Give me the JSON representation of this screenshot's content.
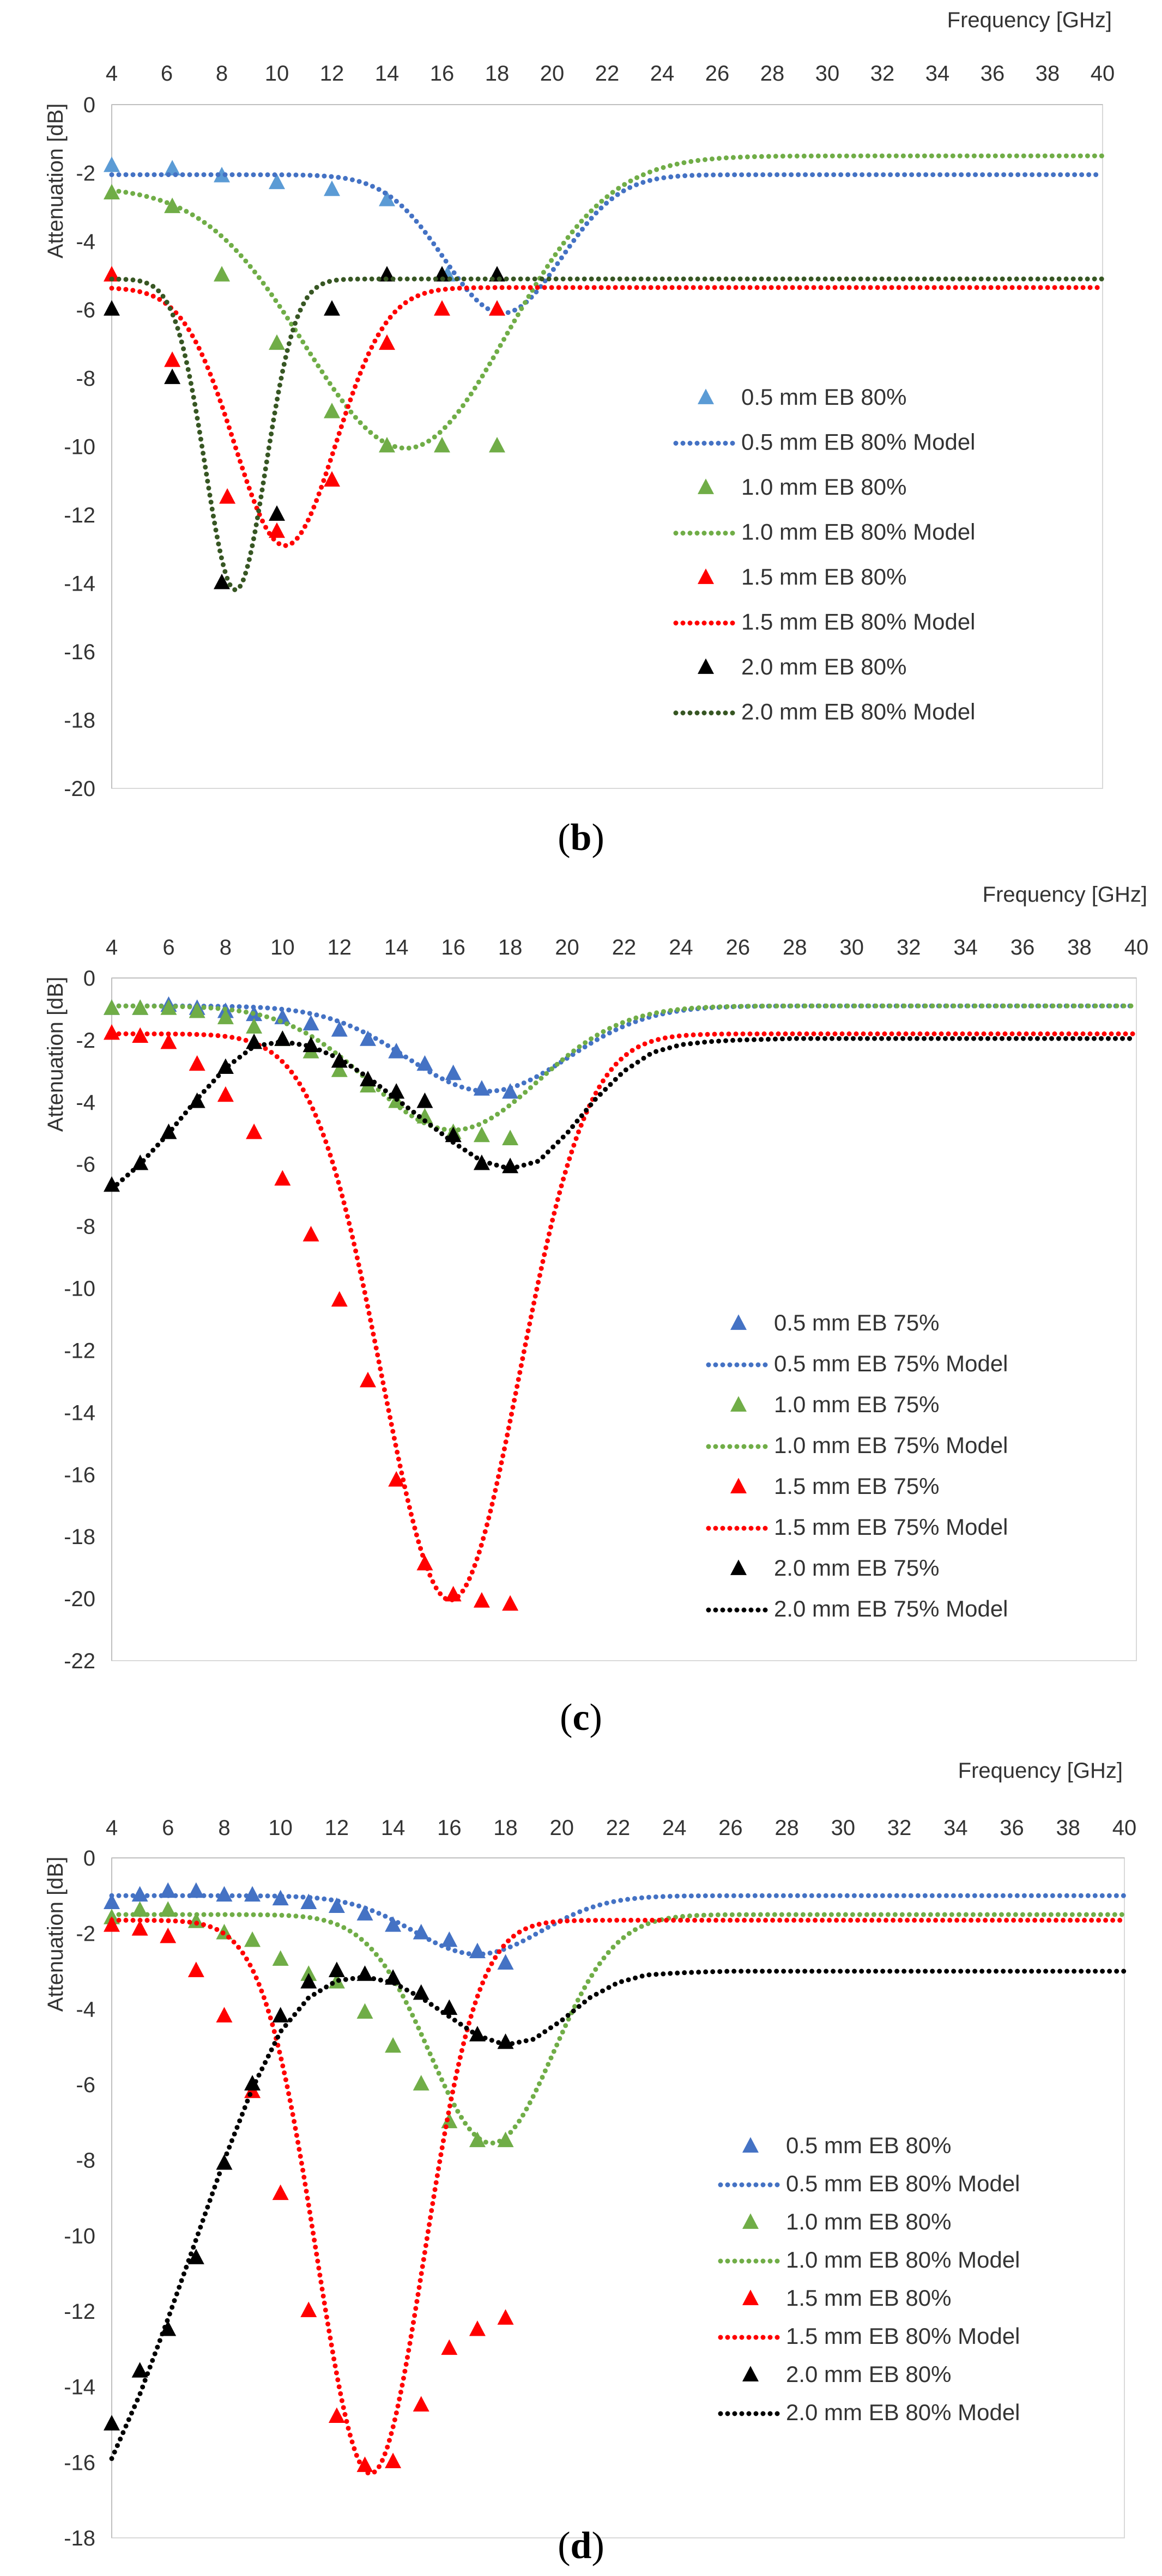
{
  "chart_data": [
    {
      "type": "scatter",
      "caption_letter": "b",
      "xlabel": "Frequency [GHz]",
      "ylabel": "Attenuation [dB]",
      "xlim": [
        4,
        40
      ],
      "ylim": [
        -20,
        0
      ],
      "xticks": [
        4,
        6,
        8,
        10,
        12,
        14,
        16,
        18,
        20,
        22,
        24,
        26,
        28,
        30,
        32,
        34,
        36,
        38,
        40
      ],
      "yticks": [
        0,
        -2,
        -4,
        -6,
        -8,
        -10,
        -12,
        -14,
        -16,
        -18,
        -20
      ],
      "xaxis_position": "top",
      "legend_position": "center-right",
      "series": [
        {
          "name": "0.5 mm EB 80%",
          "kind": "points",
          "color": "#5b9bd5",
          "x": [
            4,
            6.2,
            8,
            10,
            12,
            14,
            16.2,
            18
          ],
          "y": [
            -1.8,
            -1.9,
            -2.1,
            -2.3,
            -2.5,
            -2.8,
            -5.0,
            -6.0
          ]
        },
        {
          "name": "0.5 mm EB 80% Model",
          "kind": "model",
          "color": "#4472c4",
          "base": -2.05,
          "min": -6.1,
          "center": 18.2,
          "width": 3.0,
          "xmax": 40
        },
        {
          "name": "1.0 mm EB 80%",
          "kind": "points",
          "color": "#70ad47",
          "x": [
            4,
            6.2,
            8,
            10,
            12,
            14,
            16,
            18
          ],
          "y": [
            -2.6,
            -3.0,
            -5.0,
            -7.0,
            -9.0,
            -10.0,
            -10.0,
            -10.0
          ]
        },
        {
          "name": "1.0 mm EB 80% Model",
          "kind": "model",
          "color": "#70ad47",
          "base": -2.4,
          "min": -10.05,
          "center": 14.7,
          "width": 5.2,
          "base_right": -1.5,
          "xmax": 40
        },
        {
          "name": "1.5 mm EB 80%",
          "kind": "points",
          "color": "#ff0000",
          "x": [
            4,
            6.2,
            8.2,
            10,
            12,
            14,
            16,
            18
          ],
          "y": [
            -5.0,
            -7.5,
            -11.5,
            -12.5,
            -11.0,
            -7.0,
            -6.0,
            -6.0
          ]
        },
        {
          "name": "1.5 mm EB 80% Model",
          "kind": "model",
          "color": "#ff0000",
          "base": -5.35,
          "min": -12.9,
          "center": 10.3,
          "width": 2.6,
          "xmax": 40
        },
        {
          "name": "2.0 mm EB 80%",
          "kind": "points",
          "color": "#000000",
          "x": [
            4,
            6.2,
            8,
            10,
            12,
            14,
            16,
            18
          ],
          "y": [
            -6.0,
            -8.0,
            -14.0,
            -12.0,
            -6.0,
            -5.0,
            -5.0,
            -5.0
          ]
        },
        {
          "name": "2.0 mm EB 80% Model",
          "kind": "model",
          "color": "#375623",
          "base": -5.1,
          "min": -14.2,
          "center": 8.5,
          "width": 1.55,
          "xmax": 40
        }
      ]
    },
    {
      "type": "scatter",
      "caption_letter": "c",
      "xlabel": "Frequency [GHz]",
      "ylabel": "Attenuation [dB]",
      "xlim": [
        4,
        40
      ],
      "ylim": [
        -22,
        0
      ],
      "xticks": [
        4,
        6,
        8,
        10,
        12,
        14,
        16,
        18,
        20,
        22,
        24,
        26,
        28,
        30,
        32,
        34,
        36,
        38,
        40
      ],
      "yticks": [
        0,
        -2,
        -4,
        -6,
        -8,
        -10,
        -12,
        -14,
        -16,
        -18,
        -20,
        -22
      ],
      "xaxis_position": "top",
      "legend_position": "center-right",
      "series": [
        {
          "name": "0.5 mm EB 75%",
          "kind": "points",
          "color": "#4472c4",
          "x": [
            4,
            5,
            6,
            7,
            8,
            9,
            10,
            11,
            12,
            13,
            14,
            15,
            16,
            17,
            18
          ],
          "y": [
            -1.0,
            -1.0,
            -0.9,
            -1.0,
            -1.1,
            -1.2,
            -1.3,
            -1.5,
            -1.7,
            -2.0,
            -2.4,
            -2.8,
            -3.1,
            -3.6,
            -3.7
          ]
        },
        {
          "name": "0.5 mm EB 75% Model",
          "kind": "model",
          "color": "#4472c4",
          "base": -0.9,
          "min": -3.65,
          "center": 17.2,
          "width": 4.0,
          "xmax": 40
        },
        {
          "name": "1.0 mm EB 75%",
          "kind": "points",
          "color": "#70ad47",
          "x": [
            4,
            5,
            6,
            7,
            8,
            9,
            10,
            11,
            12,
            13,
            14,
            15,
            16,
            17,
            18
          ],
          "y": [
            -1.0,
            -1.0,
            -1.0,
            -1.1,
            -1.3,
            -1.6,
            -2.0,
            -2.4,
            -3.0,
            -3.5,
            -4.0,
            -4.5,
            -5.0,
            -5.1,
            -5.2
          ]
        },
        {
          "name": "1.0 mm EB 75% Model",
          "kind": "model",
          "color": "#70ad47",
          "base": -0.9,
          "min": -4.9,
          "center": 16.0,
          "width": 4.2,
          "xmax": 40
        },
        {
          "name": "1.5 mm EB 75%",
          "kind": "points",
          "color": "#ff0000",
          "x": [
            4,
            5,
            6,
            7,
            8,
            9,
            10,
            11,
            12,
            13,
            14,
            15,
            16,
            17,
            18
          ],
          "y": [
            -1.8,
            -1.9,
            -2.1,
            -2.8,
            -3.8,
            -5.0,
            -6.5,
            -8.3,
            -10.4,
            -13.0,
            -16.2,
            -18.9,
            -19.9,
            -20.1,
            -20.2
          ]
        },
        {
          "name": "1.5 mm EB 75% Model",
          "kind": "model",
          "color": "#ff0000",
          "base": -1.8,
          "min": -20.05,
          "center": 15.9,
          "width": 3.4,
          "xmax": 40
        },
        {
          "name": "2.0 mm EB 75%",
          "kind": "points",
          "color": "#000000",
          "x": [
            4,
            5,
            6,
            7,
            8,
            9,
            10,
            11,
            12,
            13,
            14,
            15,
            16,
            17,
            18
          ],
          "y": [
            -6.7,
            -6.0,
            -5.0,
            -4.0,
            -2.9,
            -2.1,
            -2.0,
            -2.2,
            -2.7,
            -3.3,
            -3.7,
            -4.0,
            -5.1,
            -6.0,
            -6.1
          ]
        },
        {
          "name": "2.0 mm EB 75% Model",
          "kind": "curve",
          "color": "#000000",
          "x": [
            4,
            5,
            6,
            7,
            8,
            9,
            10,
            11,
            12,
            13,
            14,
            15,
            16,
            17,
            18,
            19,
            20,
            21,
            22,
            23,
            24,
            25,
            26,
            28,
            30,
            40
          ],
          "y": [
            -6.8,
            -6.0,
            -5.0,
            -3.9,
            -2.9,
            -2.2,
            -2.05,
            -2.2,
            -2.6,
            -3.2,
            -3.9,
            -4.6,
            -5.3,
            -5.9,
            -6.15,
            -5.9,
            -5.0,
            -3.9,
            -3.0,
            -2.4,
            -2.15,
            -2.05,
            -2.0,
            -1.95,
            -1.95,
            -1.95
          ]
        }
      ]
    },
    {
      "type": "scatter",
      "caption_letter": "d",
      "xlabel": "Frequency [GHz]",
      "ylabel": "Attenuation [dB]",
      "xlim": [
        4,
        40
      ],
      "ylim": [
        -18,
        0
      ],
      "xticks": [
        4,
        6,
        8,
        10,
        12,
        14,
        16,
        18,
        20,
        22,
        24,
        26,
        28,
        30,
        32,
        34,
        36,
        38,
        40
      ],
      "yticks": [
        0,
        -2,
        -4,
        -6,
        -8,
        -10,
        -12,
        -14,
        -16,
        -18
      ],
      "xaxis_position": "top",
      "legend_position": "center-right",
      "series": [
        {
          "name": "0.5 mm EB 80%",
          "kind": "points",
          "color": "#4472c4",
          "x": [
            4,
            5,
            6,
            7,
            8,
            9,
            10,
            11,
            12,
            13,
            14,
            15,
            16,
            17,
            18
          ],
          "y": [
            -1.2,
            -1.0,
            -0.9,
            -0.9,
            -1.0,
            -1.0,
            -1.1,
            -1.2,
            -1.3,
            -1.5,
            -1.8,
            -2.0,
            -2.2,
            -2.5,
            -2.8
          ]
        },
        {
          "name": "0.5 mm EB 80% Model",
          "kind": "model",
          "color": "#4472c4",
          "base": -1.0,
          "min": -2.55,
          "center": 17.0,
          "width": 3.2,
          "xmax": 40
        },
        {
          "name": "1.0 mm EB 80%",
          "kind": "points",
          "color": "#70ad47",
          "x": [
            4,
            5,
            6,
            7,
            8,
            9,
            10,
            11,
            12,
            13,
            14,
            15,
            16,
            17,
            18
          ],
          "y": [
            -1.6,
            -1.4,
            -1.4,
            -1.7,
            -2.0,
            -2.2,
            -2.7,
            -3.1,
            -3.3,
            -4.1,
            -5.0,
            -6.0,
            -7.0,
            -7.5,
            -7.5
          ]
        },
        {
          "name": "1.0 mm EB 80% Model",
          "kind": "model",
          "color": "#70ad47",
          "base": -1.5,
          "min": -7.55,
          "center": 17.5,
          "width": 3.1,
          "xmax": 40
        },
        {
          "name": "1.5 mm EB 80%",
          "kind": "points",
          "color": "#ff0000",
          "x": [
            4,
            5,
            6,
            7,
            8,
            9,
            10,
            11,
            12,
            13,
            14,
            15,
            16,
            17,
            18
          ],
          "y": [
            -1.8,
            -1.9,
            -2.1,
            -3.0,
            -4.2,
            -6.2,
            -8.9,
            -12.0,
            -14.8,
            -16.1,
            -16.0,
            -14.5,
            -13.0,
            -12.5,
            -12.2
          ]
        },
        {
          "name": "1.5 mm EB 80% Model",
          "kind": "model",
          "color": "#ff0000",
          "base": -1.65,
          "min": -16.3,
          "center": 13.2,
          "width": 2.7,
          "xmax": 40
        },
        {
          "name": "2.0 mm EB 80%",
          "kind": "points",
          "color": "#000000",
          "x": [
            4,
            5,
            6,
            7,
            8,
            9,
            10,
            11,
            12,
            13,
            14,
            15,
            16,
            17,
            18
          ],
          "y": [
            -15.0,
            -13.6,
            -12.5,
            -10.6,
            -8.1,
            -6.0,
            -4.2,
            -3.3,
            -3.0,
            -3.1,
            -3.2,
            -3.6,
            -4.0,
            -4.7,
            -4.9
          ]
        },
        {
          "name": "2.0 mm EB 80% Model",
          "kind": "curve",
          "color": "#000000",
          "x": [
            4,
            5,
            6,
            7,
            8,
            9,
            10,
            11,
            12,
            13,
            14,
            15,
            16,
            17,
            18,
            19,
            20,
            21,
            22,
            23,
            24,
            25,
            26,
            28,
            40
          ],
          "y": [
            -15.9,
            -14.2,
            -12.2,
            -10.1,
            -8.0,
            -6.1,
            -4.6,
            -3.7,
            -3.25,
            -3.15,
            -3.3,
            -3.7,
            -4.2,
            -4.7,
            -4.95,
            -4.8,
            -4.3,
            -3.7,
            -3.3,
            -3.1,
            -3.05,
            -3.02,
            -3.0,
            -3.0,
            -3.0
          ]
        }
      ]
    }
  ]
}
